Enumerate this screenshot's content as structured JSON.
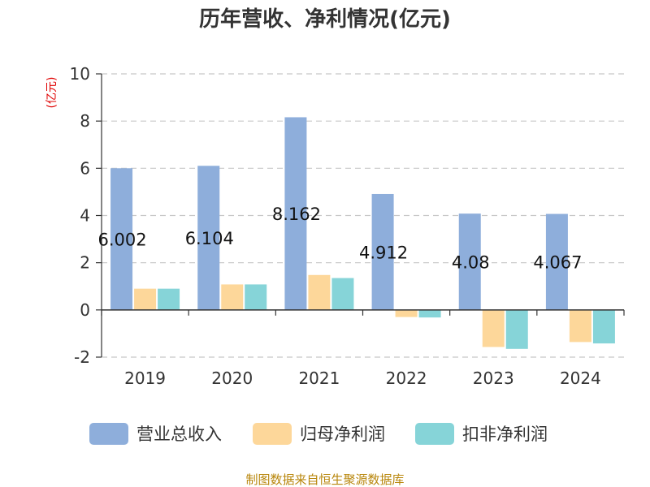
{
  "chart_data": {
    "type": "bar",
    "title": "历年营收、净利情况(亿元)",
    "unit_label": "(亿元)",
    "categories": [
      "2019",
      "2020",
      "2021",
      "2022",
      "2023",
      "2024"
    ],
    "series": [
      {
        "name": "营业总收入",
        "color": "#8eaedb",
        "values": [
          6.002,
          6.104,
          8.162,
          4.912,
          4.08,
          4.067
        ]
      },
      {
        "name": "归母净利润",
        "color": "#fdd79a",
        "values": [
          0.9,
          1.08,
          1.48,
          -0.3,
          -1.57,
          -1.36
        ]
      },
      {
        "name": "扣非净利润",
        "color": "#86d4d8",
        "values": [
          0.9,
          1.08,
          1.35,
          -0.32,
          -1.65,
          -1.42
        ]
      }
    ],
    "data_labels": [
      "6.002",
      "6.104",
      "8.162",
      "4.912",
      "4.08",
      "4.067"
    ],
    "yticks": [
      -2,
      0,
      2,
      4,
      6,
      8,
      10
    ],
    "ylim": [
      -2,
      10
    ],
    "grid": true,
    "legend_position": "bottom",
    "source": "制图数据来自恒生聚源数据库"
  }
}
